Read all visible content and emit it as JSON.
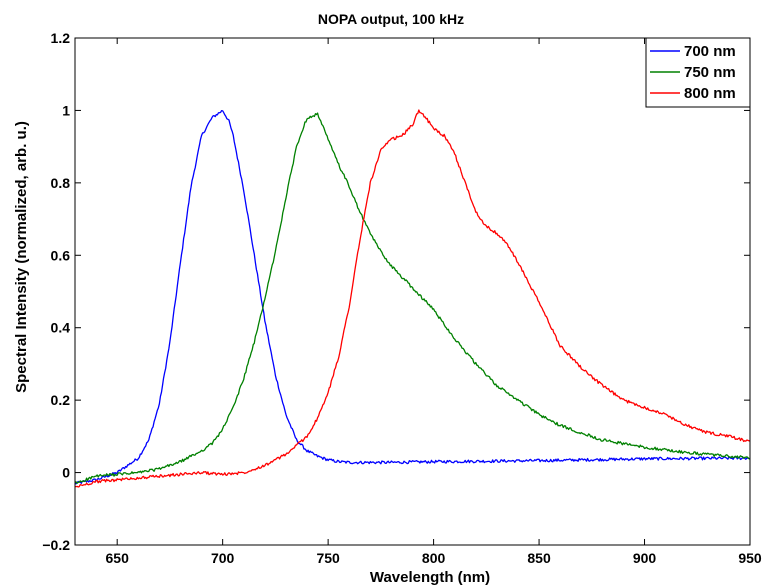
{
  "chart_data": {
    "type": "line",
    "title": "NOPA output, 100 kHz",
    "xlabel": "Wavelength (nm)",
    "ylabel": "Spectral Intensity (normalized, arb. u.)",
    "xlim": [
      630,
      950
    ],
    "ylim": [
      -0.2,
      1.2
    ],
    "xticks": [
      650,
      700,
      750,
      800,
      850,
      900,
      950
    ],
    "yticks": [
      -0.2,
      0,
      0.2,
      0.4,
      0.6,
      0.8,
      1,
      1.2
    ],
    "xtick_labels": [
      "650",
      "700",
      "750",
      "800",
      "850",
      "900",
      "950"
    ],
    "ytick_labels": [
      "−0.2",
      "0",
      "0.2",
      "0.4",
      "0.6",
      "0.8",
      "1",
      "1.2"
    ],
    "grid": false,
    "legend_position": "top-right",
    "series": [
      {
        "name": "700 nm",
        "color": "#0000ff",
        "x": [
          630,
          640,
          650,
          655,
          660,
          665,
          670,
          675,
          680,
          685,
          690,
          695,
          700,
          703,
          705,
          710,
          715,
          720,
          725,
          730,
          735,
          740,
          745,
          750,
          755,
          760,
          780,
          800,
          850,
          900,
          950
        ],
        "y": [
          -0.03,
          -0.02,
          0.0,
          0.02,
          0.04,
          0.09,
          0.19,
          0.36,
          0.58,
          0.79,
          0.93,
          0.98,
          1.0,
          0.97,
          0.93,
          0.78,
          0.6,
          0.42,
          0.27,
          0.16,
          0.09,
          0.06,
          0.045,
          0.035,
          0.03,
          0.028,
          0.028,
          0.03,
          0.033,
          0.038,
          0.04
        ]
      },
      {
        "name": "750 nm",
        "color": "#008000",
        "x": [
          630,
          640,
          650,
          660,
          670,
          680,
          690,
          695,
          700,
          705,
          710,
          715,
          720,
          725,
          730,
          735,
          740,
          745,
          750,
          755,
          760,
          765,
          770,
          775,
          780,
          785,
          790,
          795,
          800,
          810,
          820,
          830,
          840,
          850,
          860,
          870,
          880,
          900,
          920,
          950
        ],
        "y": [
          -0.03,
          -0.01,
          -0.005,
          0.0,
          0.01,
          0.03,
          0.06,
          0.08,
          0.12,
          0.18,
          0.26,
          0.36,
          0.48,
          0.61,
          0.76,
          0.9,
          0.98,
          0.99,
          0.92,
          0.85,
          0.79,
          0.72,
          0.66,
          0.61,
          0.57,
          0.54,
          0.51,
          0.48,
          0.45,
          0.37,
          0.3,
          0.24,
          0.2,
          0.16,
          0.13,
          0.11,
          0.09,
          0.07,
          0.055,
          0.04
        ]
      },
      {
        "name": "800 nm",
        "color": "#ff0000",
        "x": [
          630,
          640,
          650,
          660,
          670,
          680,
          690,
          700,
          710,
          720,
          730,
          740,
          745,
          750,
          755,
          760,
          765,
          770,
          775,
          780,
          785,
          790,
          793,
          795,
          800,
          805,
          810,
          815,
          820,
          825,
          830,
          835,
          840,
          850,
          860,
          865,
          870,
          880,
          890,
          900,
          910,
          920,
          930,
          940,
          950
        ],
        "y": [
          -0.04,
          -0.025,
          -0.02,
          -0.015,
          -0.01,
          -0.005,
          0.0,
          -0.005,
          0.0,
          0.02,
          0.05,
          0.1,
          0.15,
          0.22,
          0.32,
          0.46,
          0.64,
          0.8,
          0.89,
          0.92,
          0.93,
          0.96,
          1.0,
          0.99,
          0.95,
          0.93,
          0.88,
          0.8,
          0.72,
          0.68,
          0.66,
          0.63,
          0.58,
          0.47,
          0.35,
          0.32,
          0.29,
          0.24,
          0.2,
          0.18,
          0.16,
          0.13,
          0.11,
          0.1,
          0.085
        ]
      }
    ]
  }
}
